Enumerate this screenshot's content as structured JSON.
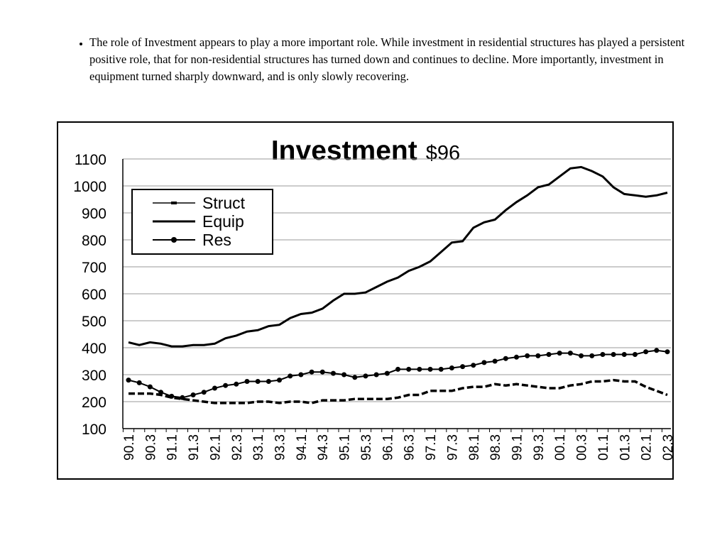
{
  "bullet_text": "The role of Investment appears to play a more important role.  While investment in residential structures has played a persistent positive role, that for non-residential structures has turned down and continues to decline.  More importantly, investment in equipment  turned sharply downward, and is only slowly recovering.",
  "chart_data": {
    "type": "line",
    "title": "Investment",
    "title_note": "$96",
    "categories": [
      "90.1",
      null,
      "90.3",
      null,
      "91.1",
      null,
      "91.3",
      null,
      "92.1",
      null,
      "92.3",
      null,
      "93.1",
      null,
      "93.3",
      null,
      "94.1",
      null,
      "94.3",
      null,
      "95.1",
      null,
      "95.3",
      null,
      "96.1",
      null,
      "96.3",
      null,
      "97.1",
      null,
      "97.3",
      null,
      "98.1",
      null,
      "98.3",
      null,
      "99.1",
      null,
      "99.3",
      null,
      "00.1",
      null,
      "00.3",
      null,
      "01.1",
      null,
      "01.3",
      null,
      "02.1",
      null,
      "02.3"
    ],
    "series": [
      {
        "name": "Struct",
        "color": "#000000",
        "style": "dash",
        "values": [
          230,
          230,
          230,
          225,
          215,
          210,
          205,
          200,
          195,
          195,
          195,
          195,
          200,
          200,
          195,
          200,
          200,
          195,
          205,
          205,
          205,
          210,
          210,
          210,
          210,
          215,
          225,
          225,
          240,
          240,
          240,
          250,
          255,
          255,
          265,
          260,
          265,
          260,
          255,
          250,
          250,
          260,
          265,
          275,
          275,
          280,
          275,
          275,
          255,
          240,
          225
        ]
      },
      {
        "name": "Equip",
        "color": "#000000",
        "style": "solid",
        "values": [
          420,
          410,
          420,
          415,
          405,
          405,
          410,
          410,
          415,
          435,
          445,
          460,
          465,
          480,
          485,
          510,
          525,
          530,
          545,
          575,
          600,
          600,
          605,
          625,
          645,
          660,
          685,
          700,
          720,
          755,
          790,
          795,
          845,
          865,
          875,
          910,
          940,
          965,
          995,
          1005,
          1035,
          1065,
          1070,
          1055,
          1035,
          995,
          970,
          965,
          960,
          965,
          975
        ]
      },
      {
        "name": "Res",
        "color": "#000000",
        "style": "dot",
        "values": [
          280,
          270,
          255,
          235,
          220,
          215,
          225,
          235,
          250,
          260,
          265,
          275,
          275,
          275,
          280,
          295,
          300,
          310,
          310,
          305,
          300,
          290,
          295,
          300,
          305,
          320,
          320,
          320,
          320,
          320,
          325,
          330,
          335,
          345,
          350,
          360,
          365,
          370,
          370,
          375,
          380,
          380,
          370,
          370,
          375,
          375,
          375,
          375,
          385,
          390,
          385
        ]
      }
    ],
    "ylim": [
      100,
      1100
    ],
    "yticks": [
      100,
      200,
      300,
      400,
      500,
      600,
      700,
      800,
      900,
      1000,
      1100
    ],
    "grid": true,
    "legend": "upper left"
  }
}
